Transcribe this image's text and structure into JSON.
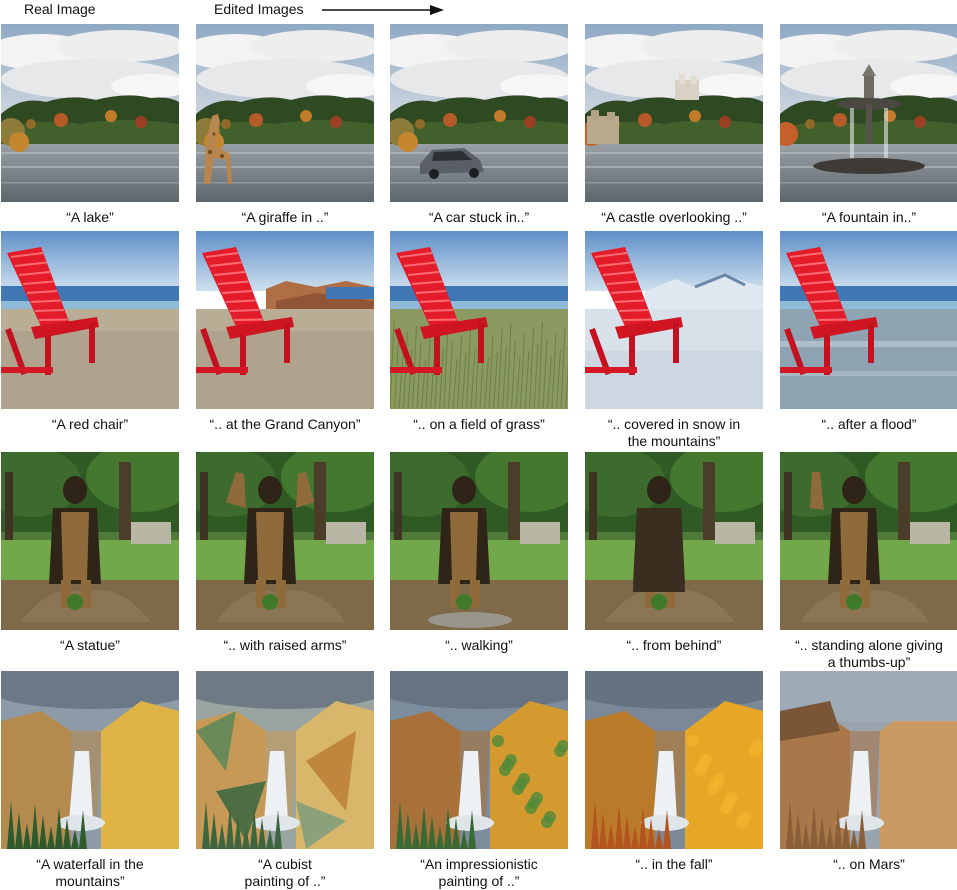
{
  "headers": {
    "real": "Real Image",
    "edited": "Edited Images"
  },
  "rows": [
    {
      "scene": "lake",
      "cells": [
        {
          "caption": "“A lake”",
          "variant": "plain"
        },
        {
          "caption": "“A giraffe in ..”",
          "variant": "giraffe"
        },
        {
          "caption": "“A car stuck in..”",
          "variant": "car"
        },
        {
          "caption": "“A castle overlooking ..”",
          "variant": "castle"
        },
        {
          "caption": "“A fountain in..”",
          "variant": "fountain"
        }
      ]
    },
    {
      "scene": "chair",
      "cells": [
        {
          "caption": "“A red chair”",
          "variant": "beach"
        },
        {
          "caption": "“.. at the Grand Canyon”",
          "variant": "canyon"
        },
        {
          "caption": "“.. on a field of grass”",
          "variant": "grass"
        },
        {
          "caption": "“.. covered in snow in\nthe mountains”",
          "variant": "snow"
        },
        {
          "caption": "“.. after a flood”",
          "variant": "flood"
        }
      ]
    },
    {
      "scene": "statue",
      "cells": [
        {
          "caption": "“A statue”",
          "variant": "plain"
        },
        {
          "caption": "“.. with raised arms”",
          "variant": "raised"
        },
        {
          "caption": "“.. walking”",
          "variant": "walking"
        },
        {
          "caption": "“.. from behind”",
          "variant": "behind"
        },
        {
          "caption": "“.. standing alone giving\na thumbs-up”",
          "variant": "thumbs"
        }
      ]
    },
    {
      "scene": "waterfall",
      "cells": [
        {
          "caption": "“A waterfall in the\nmountains”",
          "variant": "plain"
        },
        {
          "caption": "“A cubist\npainting of ..”",
          "variant": "cubist"
        },
        {
          "caption": "“An impressionistic\npainting of ..”",
          "variant": "impression"
        },
        {
          "caption": "“.. in the fall”",
          "variant": "fall"
        },
        {
          "caption": "“.. on Mars”",
          "variant": "mars"
        }
      ]
    }
  ]
}
